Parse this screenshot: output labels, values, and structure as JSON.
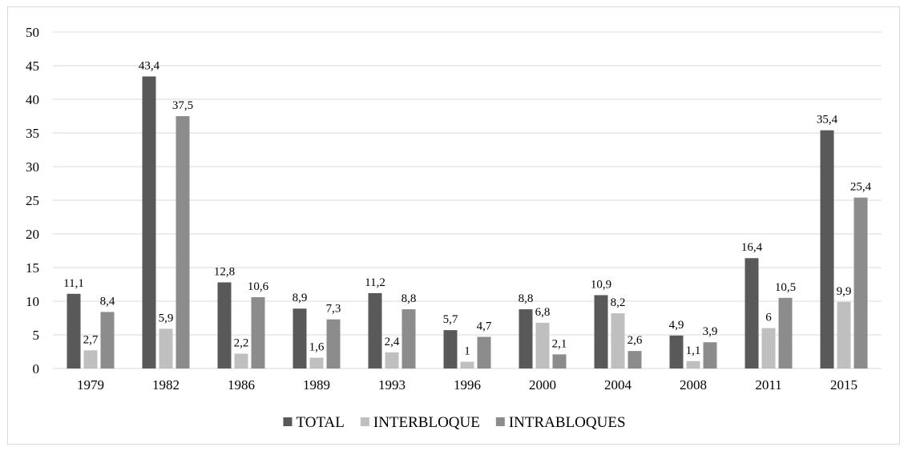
{
  "chart_data": {
    "type": "bar",
    "categories": [
      "1979",
      "1982",
      "1986",
      "1989",
      "1993",
      "1996",
      "2000",
      "2004",
      "2008",
      "2011",
      "2015"
    ],
    "series": [
      {
        "name": "TOTAL",
        "color": "#595959",
        "values": [
          11.1,
          43.4,
          12.8,
          8.9,
          11.2,
          5.7,
          8.8,
          10.9,
          4.9,
          16.4,
          35.4
        ],
        "labels": [
          "11,1",
          "43,4",
          "12,8",
          "8,9",
          "11,2",
          "5,7",
          "8,8",
          "10,9",
          "4,9",
          "16,4",
          "35,4"
        ]
      },
      {
        "name": "INTERBLOQUE",
        "color": "#bfbfbf",
        "values": [
          2.7,
          5.9,
          2.2,
          1.6,
          2.4,
          1,
          6.8,
          8.2,
          1.1,
          6,
          9.9
        ],
        "labels": [
          "2,7",
          "5,9",
          "2,2",
          "1,6",
          "2,4",
          "1",
          "6,8",
          "8,2",
          "1,1",
          "6",
          "9,9"
        ]
      },
      {
        "name": "INTRABLOQUES",
        "color": "#8c8c8c",
        "values": [
          8.4,
          37.5,
          10.6,
          7.3,
          8.8,
          4.7,
          2.1,
          2.6,
          3.9,
          10.5,
          25.4
        ],
        "labels": [
          "8,4",
          "37,5",
          "10,6",
          "7,3",
          "8,8",
          "4,7",
          "2,1",
          "2,6",
          "3,9",
          "10,5",
          "25,4"
        ]
      }
    ],
    "ylim": [
      0,
      50
    ],
    "yticks": [
      "0",
      "5",
      "10",
      "15",
      "20",
      "25",
      "30",
      "35",
      "40",
      "45",
      "50"
    ],
    "grid": true,
    "legend_position": "bottom"
  }
}
